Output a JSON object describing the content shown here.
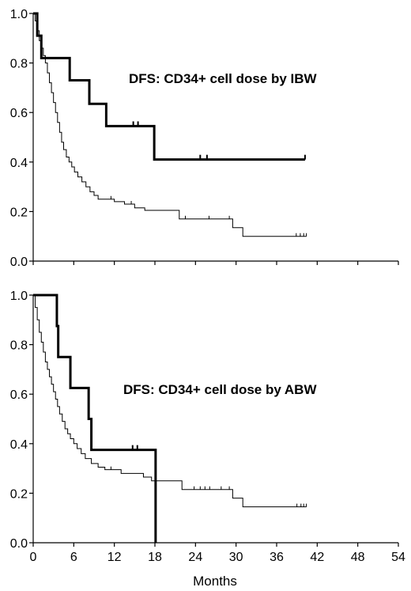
{
  "chart_data": [
    {
      "type": "line",
      "step": true,
      "title": "DFS: CD34+ cell dose  by IBW",
      "xlabel": "",
      "ylabel": "",
      "xlim": [
        0,
        54
      ],
      "ylim": [
        0,
        1
      ],
      "x_ticks": [],
      "y_ticks": [
        "0.0",
        "0.2",
        "0.4",
        "0.6",
        "0.8",
        "1.0"
      ],
      "grid": false,
      "series": [
        {
          "style": "thick",
          "points": [
            [
              0,
              1.0
            ],
            [
              0.6,
              1.0
            ],
            [
              0.6,
              0.91
            ],
            [
              1.2,
              0.91
            ],
            [
              1.2,
              0.82
            ],
            [
              5.4,
              0.82
            ],
            [
              5.4,
              0.73
            ],
            [
              8.3,
              0.73
            ],
            [
              8.3,
              0.635
            ],
            [
              10.8,
              0.635
            ],
            [
              10.8,
              0.545
            ],
            [
              17.9,
              0.545
            ],
            [
              17.9,
              0.41
            ],
            [
              40.2,
              0.41
            ]
          ],
          "censor": [
            [
              14.8,
              0.545
            ],
            [
              15.5,
              0.545
            ],
            [
              24.7,
              0.41
            ],
            [
              25.7,
              0.41
            ],
            [
              40.2,
              0.41
            ]
          ]
        },
        {
          "style": "thin",
          "points": [
            [
              0,
              1.0
            ],
            [
              0.3,
              1.0
            ],
            [
              0.3,
              0.97
            ],
            [
              0.6,
              0.97
            ],
            [
              0.6,
              0.93
            ],
            [
              0.9,
              0.93
            ],
            [
              0.9,
              0.89
            ],
            [
              1.2,
              0.89
            ],
            [
              1.2,
              0.86
            ],
            [
              1.5,
              0.86
            ],
            [
              1.5,
              0.83
            ],
            [
              1.8,
              0.83
            ],
            [
              1.8,
              0.8
            ],
            [
              2.1,
              0.8
            ],
            [
              2.1,
              0.76
            ],
            [
              2.4,
              0.76
            ],
            [
              2.4,
              0.72
            ],
            [
              2.7,
              0.72
            ],
            [
              2.7,
              0.68
            ],
            [
              3.0,
              0.68
            ],
            [
              3.0,
              0.64
            ],
            [
              3.3,
              0.64
            ],
            [
              3.3,
              0.6
            ],
            [
              3.6,
              0.6
            ],
            [
              3.6,
              0.56
            ],
            [
              3.9,
              0.56
            ],
            [
              3.9,
              0.52
            ],
            [
              4.2,
              0.52
            ],
            [
              4.2,
              0.48
            ],
            [
              4.5,
              0.48
            ],
            [
              4.5,
              0.45
            ],
            [
              4.9,
              0.45
            ],
            [
              4.9,
              0.42
            ],
            [
              5.3,
              0.42
            ],
            [
              5.3,
              0.4
            ],
            [
              5.7,
              0.4
            ],
            [
              5.7,
              0.38
            ],
            [
              6.1,
              0.38
            ],
            [
              6.1,
              0.36
            ],
            [
              6.6,
              0.36
            ],
            [
              6.6,
              0.34
            ],
            [
              7.2,
              0.34
            ],
            [
              7.2,
              0.32
            ],
            [
              7.8,
              0.32
            ],
            [
              7.8,
              0.3
            ],
            [
              8.4,
              0.3
            ],
            [
              8.4,
              0.28
            ],
            [
              9.0,
              0.28
            ],
            [
              9.0,
              0.265
            ],
            [
              9.6,
              0.265
            ],
            [
              9.6,
              0.25
            ],
            [
              12.0,
              0.25
            ],
            [
              12.0,
              0.24
            ],
            [
              13.5,
              0.24
            ],
            [
              13.5,
              0.23
            ],
            [
              15.0,
              0.23
            ],
            [
              15.0,
              0.215
            ],
            [
              16.5,
              0.215
            ],
            [
              16.5,
              0.205
            ],
            [
              21.6,
              0.205
            ],
            [
              21.6,
              0.17
            ],
            [
              29.5,
              0.17
            ],
            [
              29.5,
              0.135
            ],
            [
              31.0,
              0.135
            ],
            [
              31.0,
              0.1
            ],
            [
              40.4,
              0.1
            ]
          ],
          "censor": [
            [
              11.5,
              0.25
            ],
            [
              14.5,
              0.23
            ],
            [
              22.5,
              0.17
            ],
            [
              26.0,
              0.17
            ],
            [
              29.0,
              0.17
            ],
            [
              38.9,
              0.1
            ],
            [
              39.5,
              0.1
            ],
            [
              40.0,
              0.1
            ],
            [
              40.4,
              0.1
            ]
          ]
        }
      ]
    },
    {
      "type": "line",
      "step": true,
      "title": "DFS: CD34+ cell dose  by ABW",
      "xlabel": "Months",
      "ylabel": "",
      "xlim": [
        0,
        54
      ],
      "ylim": [
        0,
        1
      ],
      "x_ticks": [
        "0",
        "6",
        "12",
        "18",
        "24",
        "30",
        "36",
        "42",
        "48",
        "54"
      ],
      "y_ticks": [
        "0.0",
        "0.2",
        "0.4",
        "0.6",
        "0.8",
        "1.0"
      ],
      "grid": false,
      "series": [
        {
          "style": "thick",
          "points": [
            [
              0,
              1.0
            ],
            [
              3.5,
              1.0
            ],
            [
              3.5,
              0.875
            ],
            [
              3.7,
              0.875
            ],
            [
              3.7,
              0.75
            ],
            [
              5.5,
              0.75
            ],
            [
              5.5,
              0.625
            ],
            [
              8.2,
              0.625
            ],
            [
              8.2,
              0.5
            ],
            [
              8.6,
              0.5
            ],
            [
              8.6,
              0.375
            ],
            [
              18.1,
              0.375
            ],
            [
              18.1,
              0.0
            ]
          ],
          "censor": [
            [
              14.7,
              0.375
            ],
            [
              15.4,
              0.375
            ]
          ]
        },
        {
          "style": "thin",
          "points": [
            [
              0,
              1.0
            ],
            [
              0.3,
              1.0
            ],
            [
              0.3,
              0.95
            ],
            [
              0.6,
              0.95
            ],
            [
              0.6,
              0.9
            ],
            [
              0.9,
              0.9
            ],
            [
              0.9,
              0.85
            ],
            [
              1.2,
              0.85
            ],
            [
              1.2,
              0.81
            ],
            [
              1.5,
              0.81
            ],
            [
              1.5,
              0.77
            ],
            [
              1.8,
              0.77
            ],
            [
              1.8,
              0.73
            ],
            [
              2.1,
              0.73
            ],
            [
              2.1,
              0.7
            ],
            [
              2.4,
              0.7
            ],
            [
              2.4,
              0.67
            ],
            [
              2.7,
              0.67
            ],
            [
              2.7,
              0.64
            ],
            [
              3.0,
              0.64
            ],
            [
              3.0,
              0.61
            ],
            [
              3.3,
              0.61
            ],
            [
              3.3,
              0.58
            ],
            [
              3.6,
              0.58
            ],
            [
              3.6,
              0.55
            ],
            [
              3.9,
              0.55
            ],
            [
              3.9,
              0.52
            ],
            [
              4.3,
              0.52
            ],
            [
              4.3,
              0.49
            ],
            [
              4.7,
              0.49
            ],
            [
              4.7,
              0.46
            ],
            [
              5.1,
              0.46
            ],
            [
              5.1,
              0.44
            ],
            [
              5.5,
              0.44
            ],
            [
              5.5,
              0.42
            ],
            [
              6.0,
              0.42
            ],
            [
              6.0,
              0.4
            ],
            [
              6.5,
              0.4
            ],
            [
              6.5,
              0.38
            ],
            [
              7.1,
              0.38
            ],
            [
              7.1,
              0.36
            ],
            [
              7.7,
              0.36
            ],
            [
              7.7,
              0.34
            ],
            [
              8.6,
              0.34
            ],
            [
              8.6,
              0.32
            ],
            [
              9.6,
              0.32
            ],
            [
              9.6,
              0.305
            ],
            [
              10.6,
              0.305
            ],
            [
              10.6,
              0.295
            ],
            [
              13.0,
              0.295
            ],
            [
              13.0,
              0.28
            ],
            [
              16.3,
              0.28
            ],
            [
              16.3,
              0.265
            ],
            [
              17.5,
              0.265
            ],
            [
              17.5,
              0.25
            ],
            [
              22.0,
              0.25
            ],
            [
              22.0,
              0.215
            ],
            [
              29.5,
              0.215
            ],
            [
              29.5,
              0.18
            ],
            [
              31.0,
              0.18
            ],
            [
              31.0,
              0.145
            ],
            [
              40.4,
              0.145
            ]
          ],
          "censor": [
            [
              11.5,
              0.295
            ],
            [
              23.8,
              0.215
            ],
            [
              24.7,
              0.215
            ],
            [
              25.4,
              0.215
            ],
            [
              26.1,
              0.215
            ],
            [
              27.8,
              0.215
            ],
            [
              29.0,
              0.215
            ],
            [
              39.0,
              0.145
            ],
            [
              39.6,
              0.145
            ],
            [
              40.0,
              0.145
            ],
            [
              40.4,
              0.145
            ]
          ]
        }
      ]
    }
  ]
}
